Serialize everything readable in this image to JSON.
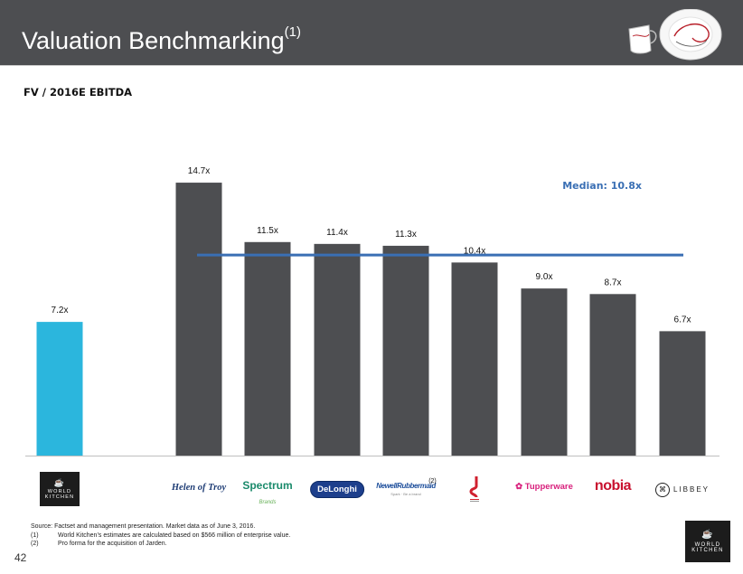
{
  "header": {
    "title": "Valuation Benchmarking",
    "title_sup": "(1)"
  },
  "subtitle": "FV / 2016E EBITDA",
  "chart_data": {
    "type": "bar",
    "title": "FV / 2016E EBITDA",
    "categories": [
      "World Kitchen",
      "Helen of Troy",
      "Spectrum Brands",
      "De'Longhi",
      "Newell Rubbermaid",
      "SEB",
      "Tupperware",
      "Nobia",
      "Libbey"
    ],
    "values": [
      7.2,
      14.7,
      11.5,
      11.4,
      11.3,
      10.4,
      9.0,
      8.7,
      6.7
    ],
    "labels": [
      "7.2x",
      "14.7x",
      "11.5x",
      "11.4x",
      "11.3x",
      "10.4x",
      "9.0x",
      "8.7x",
      "6.7x"
    ],
    "highlight_index": 0,
    "colors": {
      "highlight": "#2bb6dd",
      "peer": "#4d4e51",
      "median": "#3a6fb4"
    },
    "median": 10.8,
    "median_label": "Median: 10.8x",
    "ylim": [
      0,
      16
    ],
    "xlabel": "",
    "ylabel": "",
    "grid": false
  },
  "logos": {
    "world_kitchen": [
      "WORLD",
      "KITCHEN"
    ],
    "helen_of_troy": "Helen of Troy",
    "spectrum": "Spectrum",
    "spectrum_sub": "Brands",
    "delonghi": "DeLonghi",
    "newell": "NewellRubbermaid",
    "newell_sub": "Spark · Be a brand",
    "newell_note": "(2)",
    "tupperware": "Tupperware",
    "nobia": "nobia",
    "libbey": "LIBBEY"
  },
  "footnotes": {
    "source": "Source: Factset and management presentation. Market data as of June 3, 2016.",
    "notes": [
      {
        "num": "(1)",
        "text": "World Kitchen’s estimates are calculated based on $566 million of enterprise value."
      },
      {
        "num": "(2)",
        "text": "Pro forma for the acquisition of Jarden."
      }
    ]
  },
  "page_number": "42",
  "corner_logo": [
    "WORLD",
    "KITCHEN"
  ]
}
